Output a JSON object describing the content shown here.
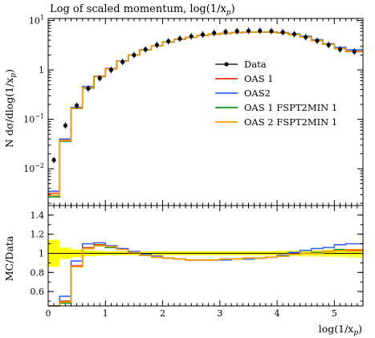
{
  "plot_title": "Log of scaled momentum, log(1/x",
  "plot_title_sub": "p",
  "plot_title_tail": ")",
  "ylabel_main": "N dσ/dlog(1/x",
  "ylabel_main_sub": "p",
  "ylabel_main_tail": ")",
  "ylabel_ratio": "MC/Data",
  "xlabel": "log(1/x",
  "xlabel_sub": "p",
  "xlabel_tail": ")",
  "legend": [
    "Data",
    "OAS 1",
    "OAS2",
    "OAS 1 FSPT2MIN 1",
    "OAS 2 FSPT2MIN 1"
  ],
  "chart_data": {
    "type": "line",
    "title": "Log of scaled momentum, log(1/xp)",
    "xlabel": "log(1/xp)",
    "ylabel": "N dσ/dlog(1/xp)",
    "xlim": [
      0,
      5.5
    ],
    "ylim": [
      0.0018,
      11
    ],
    "yscale": "log",
    "legend_position": "right",
    "x_ticks": [
      "0",
      "1",
      "2",
      "3",
      "4",
      "5"
    ],
    "y_ticks": [
      "10^-2",
      "10^-1",
      "1",
      "10^1"
    ],
    "bin_edges": [
      0,
      0.2,
      0.4,
      0.6,
      0.8,
      1.0,
      1.2,
      1.4,
      1.6,
      1.8,
      2.0,
      2.2,
      2.4,
      2.6,
      2.8,
      3.0,
      3.2,
      3.4,
      3.6,
      3.8,
      4.0,
      4.2,
      4.4,
      4.6,
      4.8,
      5.0,
      5.2,
      5.5
    ],
    "data": {
      "name": "Data",
      "color": "#000000",
      "x": [
        0.1,
        0.3,
        0.5,
        0.7,
        0.9,
        1.1,
        1.3,
        1.5,
        1.7,
        1.9,
        2.1,
        2.3,
        2.5,
        2.7,
        2.9,
        3.1,
        3.3,
        3.5,
        3.7,
        3.9,
        4.1,
        4.3,
        4.5,
        4.7,
        4.9,
        5.1,
        5.35
      ],
      "y": [
        0.015,
        0.075,
        0.19,
        0.42,
        0.68,
        1.0,
        1.45,
        2.0,
        2.6,
        3.2,
        3.8,
        4.3,
        4.8,
        5.2,
        5.6,
        5.9,
        6.1,
        6.2,
        6.2,
        6.1,
        5.8,
        5.3,
        4.6,
        3.9,
        3.2,
        2.6,
        2.35
      ]
    },
    "series": [
      {
        "name": "OAS 1",
        "color": "#ee3311",
        "values": [
          0.0032,
          0.038,
          0.17,
          0.44,
          0.74,
          1.06,
          1.5,
          2.0,
          2.55,
          3.1,
          3.7,
          4.2,
          4.6,
          5.0,
          5.3,
          5.5,
          5.7,
          5.8,
          5.85,
          5.8,
          5.6,
          5.2,
          4.6,
          3.9,
          3.3,
          2.7,
          2.35
        ]
      },
      {
        "name": "OAS2",
        "color": "#3366ff",
        "values": [
          0.0035,
          0.04,
          0.175,
          0.46,
          0.75,
          1.08,
          1.52,
          2.02,
          2.56,
          3.1,
          3.65,
          4.15,
          4.55,
          4.95,
          5.25,
          5.45,
          5.65,
          5.75,
          5.85,
          5.85,
          5.7,
          5.35,
          4.8,
          4.1,
          3.4,
          2.85,
          2.55
        ]
      },
      {
        "name": "OAS 1 FSPT2MIN 1",
        "color": "#109618",
        "values": [
          0.0027,
          0.036,
          0.165,
          0.43,
          0.73,
          1.05,
          1.5,
          2.0,
          2.55,
          3.1,
          3.7,
          4.2,
          4.6,
          5.0,
          5.3,
          5.5,
          5.7,
          5.8,
          5.85,
          5.8,
          5.6,
          5.25,
          4.65,
          3.95,
          3.3,
          2.7,
          2.4
        ]
      },
      {
        "name": "OAS 2 FSPT2MIN 1",
        "color": "#ff9900",
        "values": [
          0.0029,
          0.037,
          0.168,
          0.44,
          0.74,
          1.06,
          1.5,
          2.0,
          2.55,
          3.1,
          3.7,
          4.2,
          4.6,
          5.0,
          5.3,
          5.5,
          5.7,
          5.8,
          5.85,
          5.8,
          5.6,
          5.2,
          4.6,
          3.95,
          3.3,
          2.7,
          2.4
        ]
      }
    ],
    "ratio": {
      "ylabel": "MC/Data",
      "ylim": [
        0.45,
        1.5
      ],
      "y_ticks": [
        "0.6",
        "0.8",
        "1",
        "1.2",
        "1.4"
      ],
      "band_color": "#ffff00",
      "band_inner": [
        0.14,
        0.06,
        0.04,
        0.03,
        0.025,
        0.02,
        0.02,
        0.02,
        0.02,
        0.02,
        0.02,
        0.02,
        0.02,
        0.02,
        0.02,
        0.02,
        0.02,
        0.02,
        0.02,
        0.02,
        0.02,
        0.02,
        0.02,
        0.02,
        0.02,
        0.02,
        0.02
      ],
      "band_outer": [
        0.14,
        0.06,
        0.04,
        0.03,
        0.025,
        0.02,
        0.02,
        0.02,
        0.02,
        0.02,
        0.02,
        0.02,
        0.02,
        0.02,
        0.02,
        0.02,
        0.02,
        0.02,
        0.02,
        0.02,
        0.03,
        0.03,
        0.035,
        0.035,
        0.04,
        0.04,
        0.045
      ],
      "series": [
        {
          "name": "OAS 1",
          "values": [
            0.2,
            0.5,
            0.87,
            1.06,
            1.09,
            1.07,
            1.04,
            1.01,
            0.98,
            0.96,
            0.95,
            0.94,
            0.93,
            0.93,
            0.93,
            0.94,
            0.94,
            0.95,
            0.95,
            0.96,
            0.97,
            0.99,
            1.0,
            1.0,
            1.02,
            1.04,
            1.03
          ]
        },
        {
          "name": "OAS2",
          "values": [
            0.22,
            0.55,
            0.92,
            1.1,
            1.11,
            1.08,
            1.05,
            1.02,
            0.99,
            0.97,
            0.95,
            0.94,
            0.93,
            0.93,
            0.93,
            0.93,
            0.94,
            0.94,
            0.95,
            0.96,
            0.98,
            1.01,
            1.03,
            1.05,
            1.06,
            1.09,
            1.1
          ]
        },
        {
          "name": "OAS 1 FSPT2MIN 1",
          "values": [
            0.18,
            0.48,
            0.86,
            1.05,
            1.08,
            1.06,
            1.04,
            1.01,
            0.98,
            0.96,
            0.95,
            0.94,
            0.93,
            0.93,
            0.93,
            0.94,
            0.94,
            0.95,
            0.95,
            0.96,
            0.97,
            0.99,
            1.0,
            1.01,
            1.02,
            1.04,
            1.04
          ]
        },
        {
          "name": "OAS 2 FSPT2MIN 1",
          "values": [
            0.19,
            0.49,
            0.86,
            1.05,
            1.08,
            1.07,
            1.04,
            1.01,
            0.98,
            0.96,
            0.95,
            0.94,
            0.93,
            0.93,
            0.93,
            0.94,
            0.94,
            0.95,
            0.95,
            0.96,
            0.97,
            0.99,
            1.0,
            1.0,
            1.02,
            1.03,
            1.04
          ]
        }
      ]
    }
  }
}
